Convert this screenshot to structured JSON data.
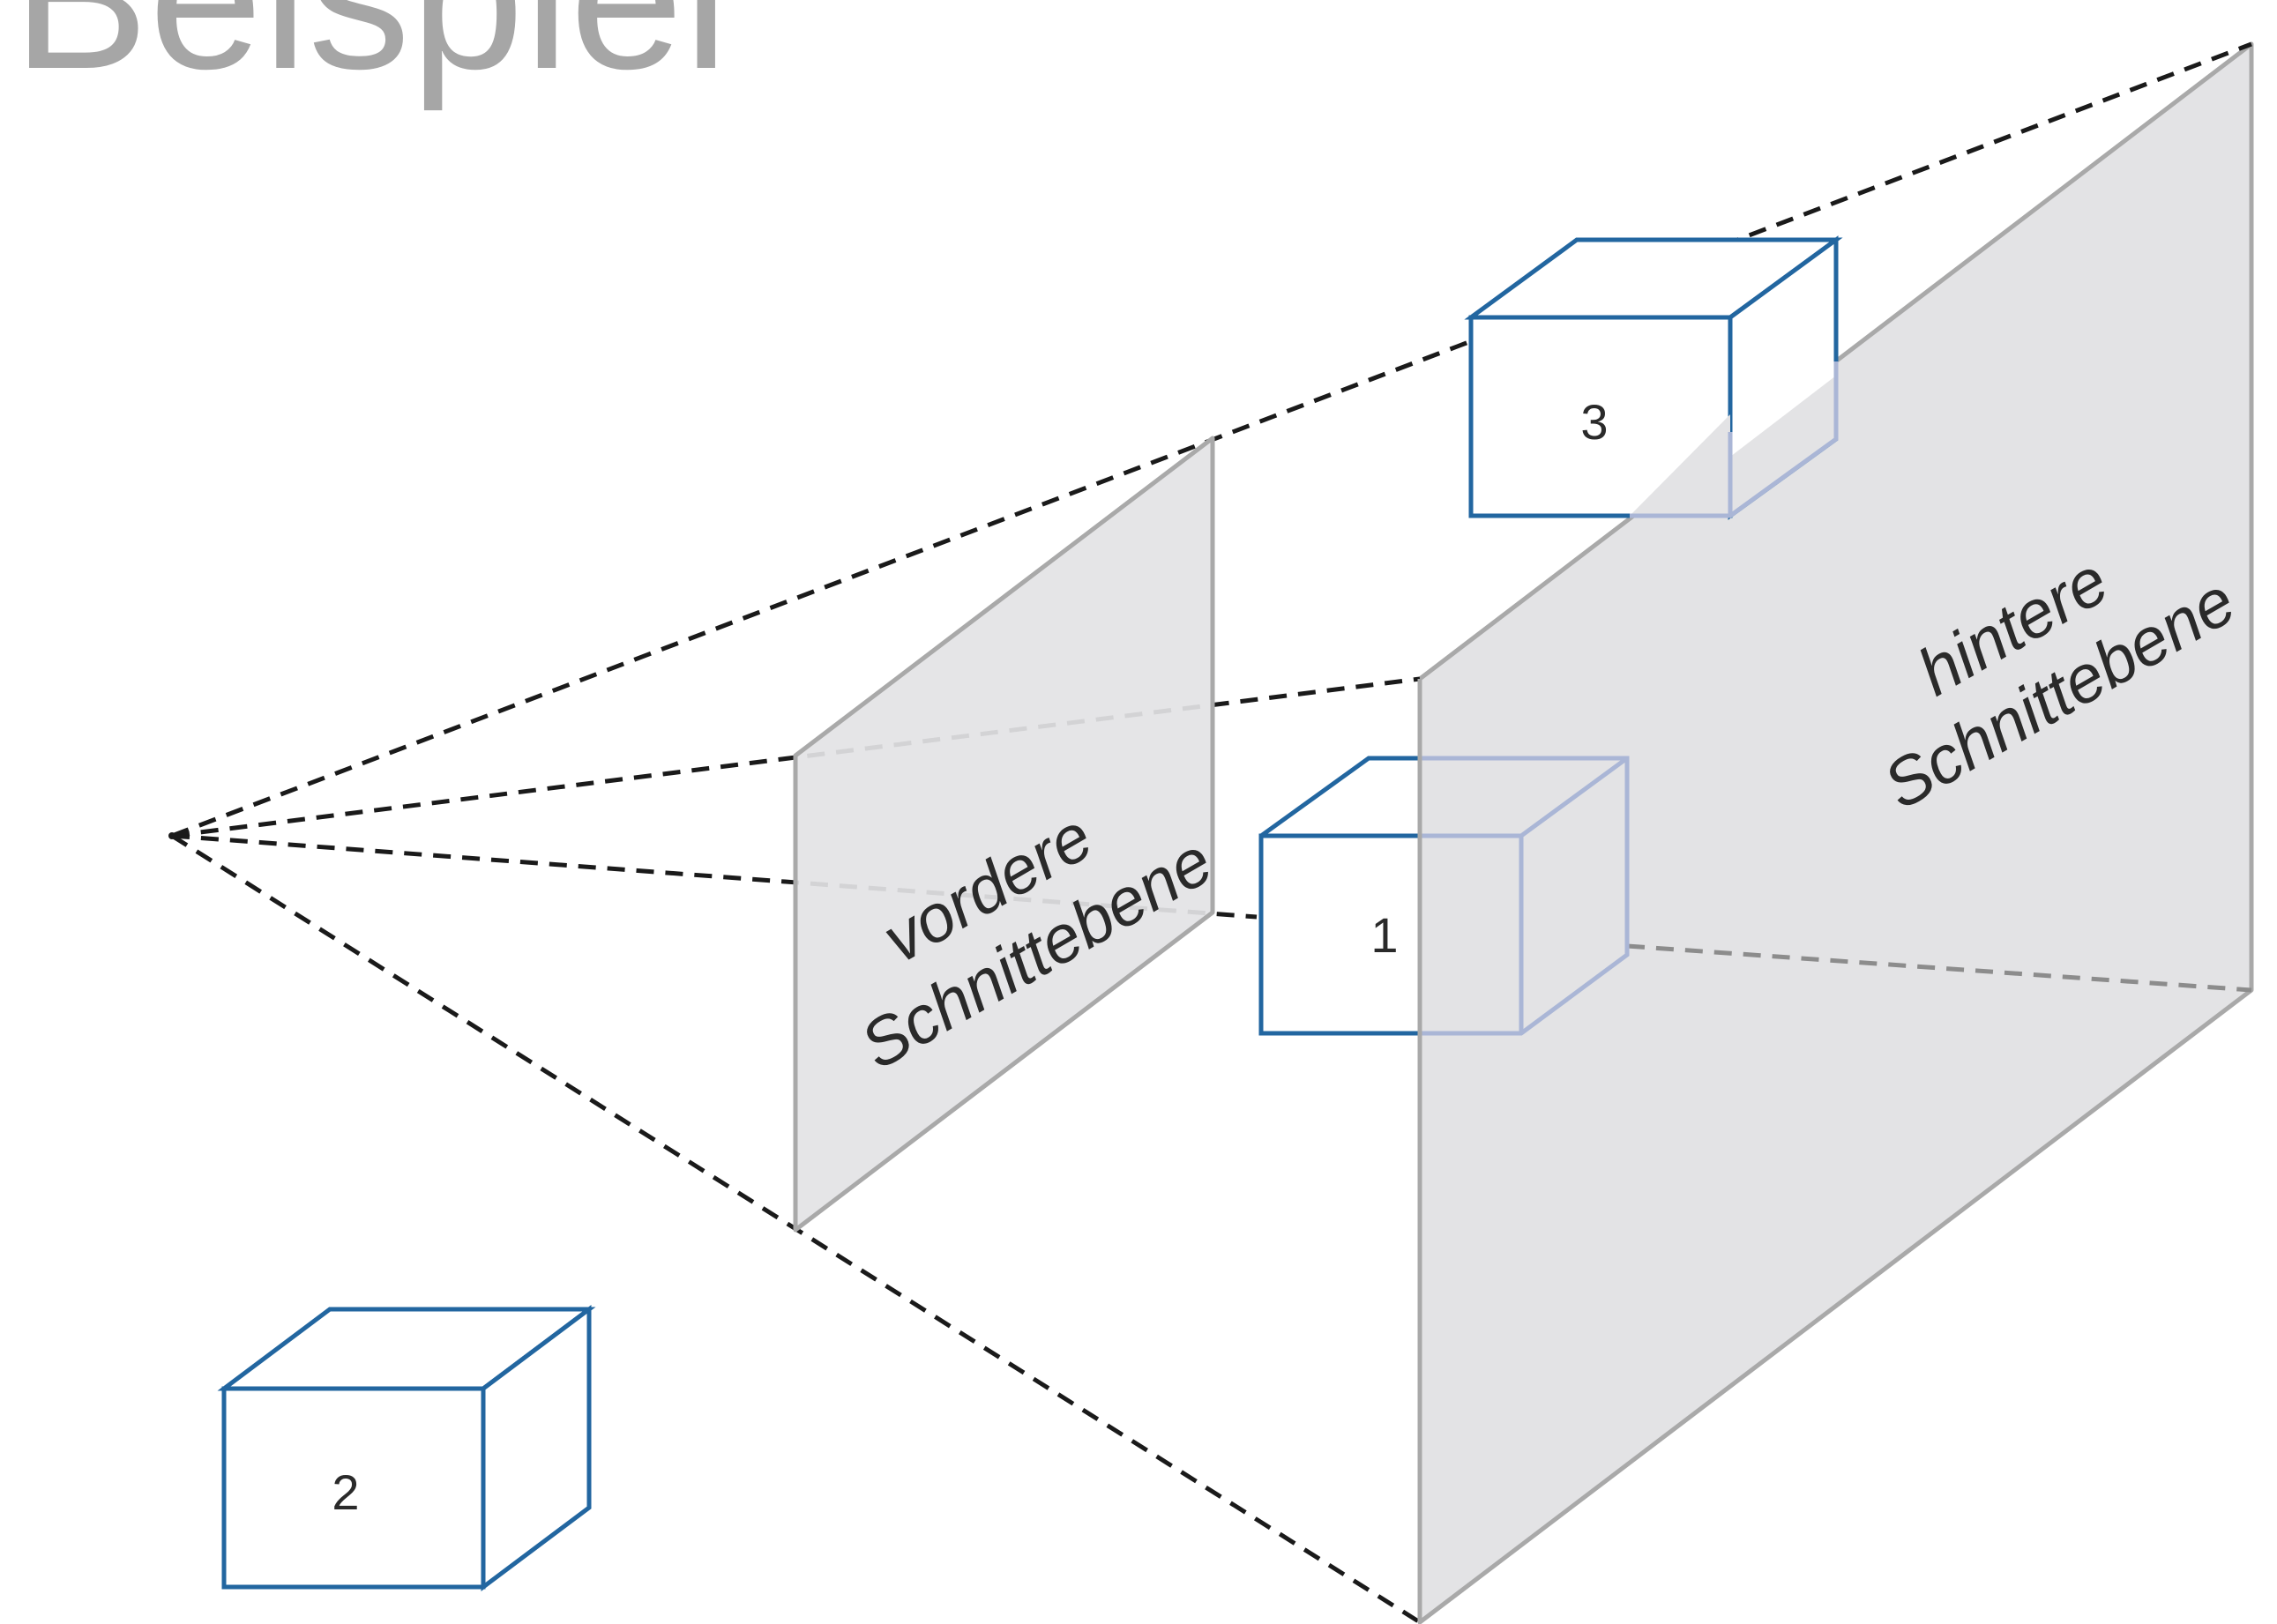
{
  "title": "Beispiel",
  "planes": {
    "near": {
      "label_line1": "vordere",
      "label_line2": "Schnittebene"
    },
    "far": {
      "label_line1": "hintere",
      "label_line2": "Schnittebene"
    }
  },
  "objects": [
    {
      "label": "1"
    },
    {
      "label": "2"
    },
    {
      "label": "3"
    }
  ],
  "colors": {
    "title": "#a6a6a6",
    "cube_stroke": "#2266a0",
    "cube_stroke_faded": "#aab6d6",
    "plane_fill": "#e3e3e5",
    "plane_stroke": "#a9a9a9",
    "frustum_line": "#1a1a1a",
    "frustum_line_hidden": "#8c8c8c",
    "text": "#2a2a2a"
  }
}
